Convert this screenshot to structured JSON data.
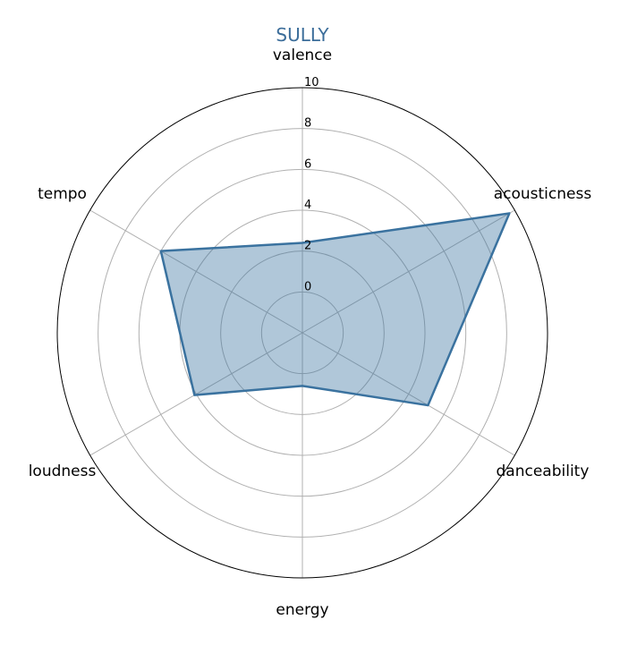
{
  "chart_data": {
    "type": "radar",
    "title": "SULLY",
    "axes": [
      "valence",
      "acousticness",
      "danceability",
      "energy",
      "loudness",
      "tempo"
    ],
    "series": [
      {
        "values": [
          2.4,
          9.7,
          5.1,
          0.6,
          4.1,
          6.0
        ]
      }
    ],
    "radial_ticks": [
      0,
      2,
      4,
      6,
      8,
      10
    ],
    "rlim": [
      -2,
      10
    ],
    "grid": true,
    "colors": {
      "title": "#3b6d9a",
      "line": "#3a729f",
      "fill": "#3a729f",
      "fill_opacity": 0.4,
      "grid": "#b0b0b0",
      "frame": "#000000"
    }
  }
}
